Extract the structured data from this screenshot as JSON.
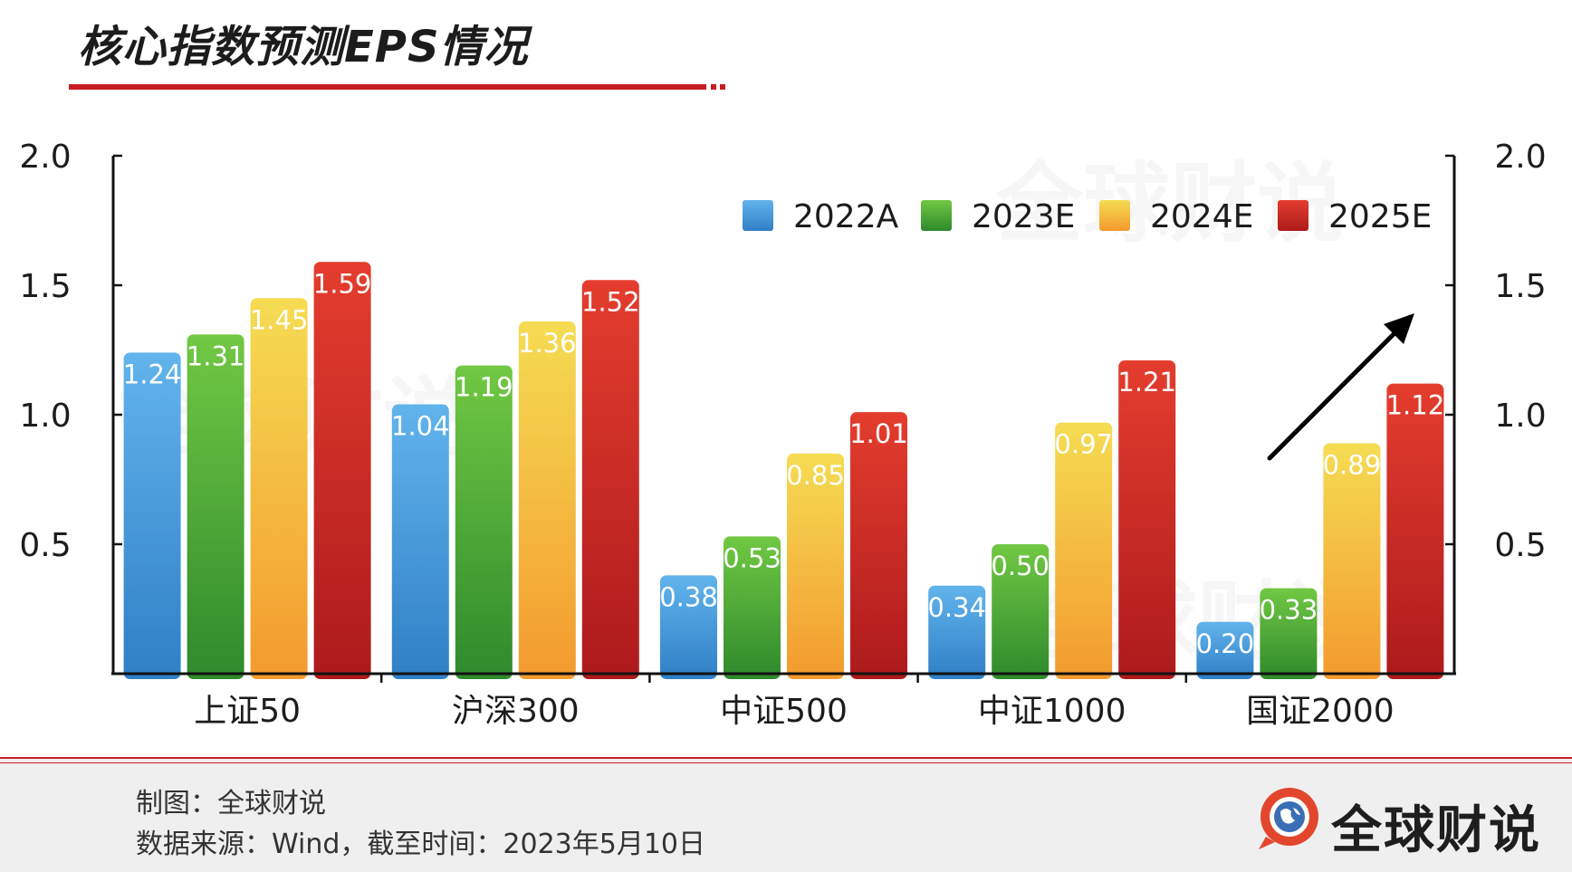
{
  "header": {
    "title": "核心指数预测EPS情况"
  },
  "watermark": "全球财说",
  "chart_data": {
    "type": "bar",
    "categories": [
      "上证50",
      "沪深300",
      "中证500",
      "中证1000",
      "国证2000"
    ],
    "series": [
      {
        "name": "2022A",
        "values": [
          1.24,
          1.04,
          0.38,
          0.34,
          0.2
        ],
        "color_top": "#62b4ec",
        "color_bottom": "#2f7fc6",
        "value_labels": [
          "1.24",
          "1.04",
          "0.38",
          "0.34",
          "0.20"
        ]
      },
      {
        "name": "2023E",
        "values": [
          1.31,
          1.19,
          0.53,
          0.5,
          0.33
        ],
        "color_top": "#71c843",
        "color_bottom": "#2e8a2c",
        "value_labels": [
          "1.31",
          "1.19",
          "0.53",
          "0.50",
          "0.33"
        ]
      },
      {
        "name": "2024E",
        "values": [
          1.45,
          1.36,
          0.85,
          0.97,
          0.89
        ],
        "color_top": "#f5dc53",
        "color_bottom": "#f39a2e",
        "value_labels": [
          "1.45",
          "1.36",
          "0.85",
          "0.97",
          "0.89"
        ]
      },
      {
        "name": "2025E",
        "values": [
          1.59,
          1.52,
          1.01,
          1.21,
          1.12
        ],
        "color_top": "#e43d2e",
        "color_bottom": "#ad1a1c",
        "value_labels": [
          "1.59",
          "1.52",
          "1.01",
          "1.21",
          "1.12"
        ]
      }
    ],
    "title": "核心指数预测EPS情况",
    "xlabel": "",
    "ylabel": "",
    "ylim": [
      0,
      2.0
    ],
    "yticks": [
      "0.5",
      "1.0",
      "1.5",
      "2.0"
    ],
    "ytick_values": [
      0.5,
      1.0,
      1.5,
      2.0
    ],
    "legend_position": "top-right",
    "annotation": "upward arrow near 国证2000"
  },
  "footer": {
    "credit": "制图：全球财说",
    "source": "数据来源：Wind，截至时间：2023年5月10日",
    "brand_name": "全球财说"
  },
  "colors": {
    "accent": "#c81d25",
    "axis": "#111111"
  }
}
